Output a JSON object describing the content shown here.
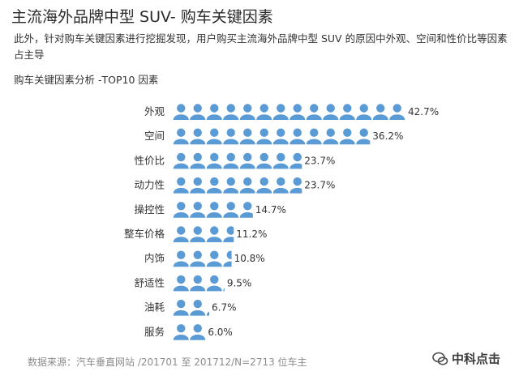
{
  "header": {
    "title": "主流海外品牌中型 SUV- 购车关键因素",
    "subtitle": "此外，针对购车关键因素进行挖掘发现，用户购买主流海外品牌中型 SUV 的原因中外观、空间和性价比等因素占主导"
  },
  "chart_data": {
    "type": "bar",
    "orientation": "horizontal",
    "title": "购车关键因素分析 -TOP10 因素",
    "categories": [
      "外观",
      "空间",
      "性价比",
      "动力性",
      "操控性",
      "整车价格",
      "内饰",
      "舒适性",
      "油耗",
      "服务"
    ],
    "values": [
      42.7,
      36.2,
      23.7,
      23.7,
      14.7,
      11.2,
      10.8,
      9.5,
      6.7,
      6.0
    ],
    "value_labels": [
      "42.7%",
      "36.2%",
      "23.7%",
      "23.7%",
      "14.7%",
      "11.2%",
      "10.8%",
      "9.5%",
      "6.7%",
      "6.0%"
    ],
    "unit": "%",
    "xlim": [
      0,
      42.7
    ],
    "grid": false,
    "bar_color": "#5b9bd5",
    "icon": "person-icon"
  },
  "footer": {
    "source": "数据来源：汽车垂直网站 /201701 至 201712/N=2713 位车主",
    "logo_text": "中科点击"
  }
}
